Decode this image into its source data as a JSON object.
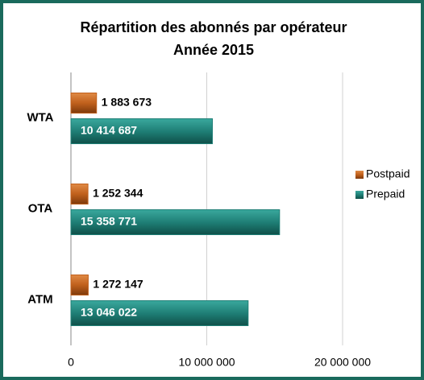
{
  "chart_data": {
    "type": "barh",
    "title": "Répartition des abonnés par opérateur",
    "subtitle": "Année 2015",
    "categories": [
      "WTA",
      "OTA",
      "ATM"
    ],
    "series": [
      {
        "name": "Postpaid",
        "color": "#c0601c",
        "values": [
          1883673,
          1252344,
          1272147
        ],
        "value_labels": [
          "1 883 673",
          "1 252 344",
          "1 272 147"
        ]
      },
      {
        "name": "Prepaid",
        "color": "#1f7f76",
        "values": [
          10414687,
          15358771,
          13046022
        ],
        "value_labels": [
          "10 414 687",
          "15 358 771",
          "13 046 022"
        ]
      }
    ],
    "xlim": [
      0,
      20000000
    ],
    "xticks": [
      0,
      {
        "value": 10000000,
        "label": "10 000 000"
      },
      {
        "value": 20000000,
        "label": "20 000 000"
      }
    ],
    "grid": true,
    "legend": "right"
  }
}
